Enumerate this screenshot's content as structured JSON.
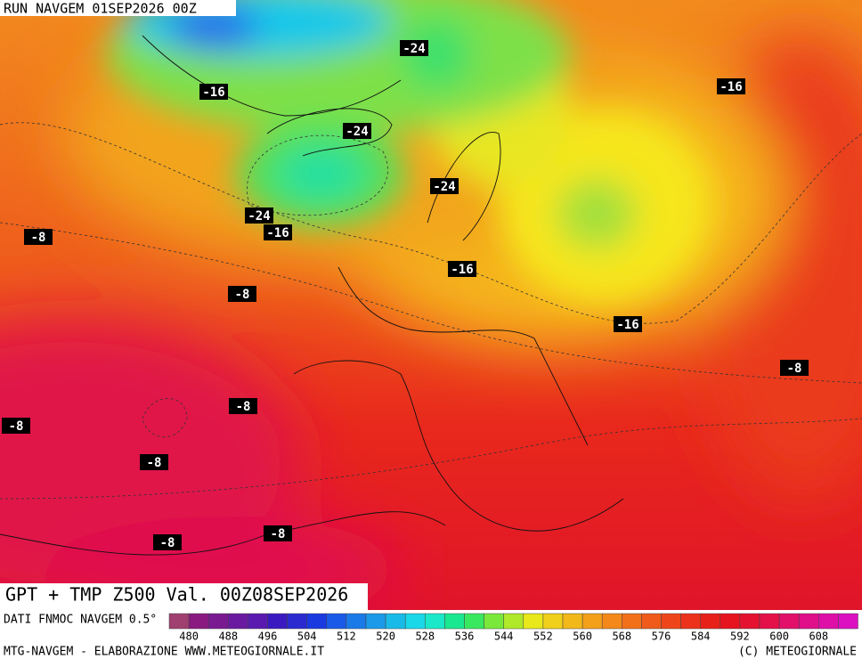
{
  "header": {
    "run": "RUN NAVGEM 01SEP2026 00Z"
  },
  "map": {
    "title": "GPT + TMP Z500 Val. 00Z08SEP2026",
    "contour_labels": [
      "-24",
      "-16",
      "-24",
      "-16",
      "-24",
      "-24",
      "-16",
      "-8",
      "-16",
      "-8",
      "-16",
      "-8",
      "-8",
      "-8",
      "-8",
      "-8",
      "-8"
    ]
  },
  "legend": {
    "source": "DATI FNMOC NAVGEM 0.5°",
    "scale_labels": [
      480,
      488,
      496,
      504,
      512,
      520,
      528,
      536,
      544,
      552,
      560,
      568,
      576,
      584,
      592,
      600,
      608
    ]
  },
  "footer": {
    "left": "MTG-NAVGEM - ELABORAZIONE WWW.METEOGIORNALE.IT",
    "right": "(C) METEOGIORNALE"
  }
}
